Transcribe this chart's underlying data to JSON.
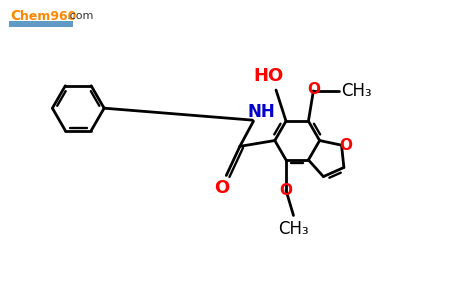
{
  "background_color": "#ffffff",
  "bond_color": "#000000",
  "nh_color": "#0000cd",
  "oxygen_color": "#ff0000",
  "line_width": 2.0,
  "figsize": [
    4.74,
    2.93
  ],
  "dpi": 100,
  "xlim": [
    0,
    9.48
  ],
  "ylim": [
    0,
    5.86
  ]
}
